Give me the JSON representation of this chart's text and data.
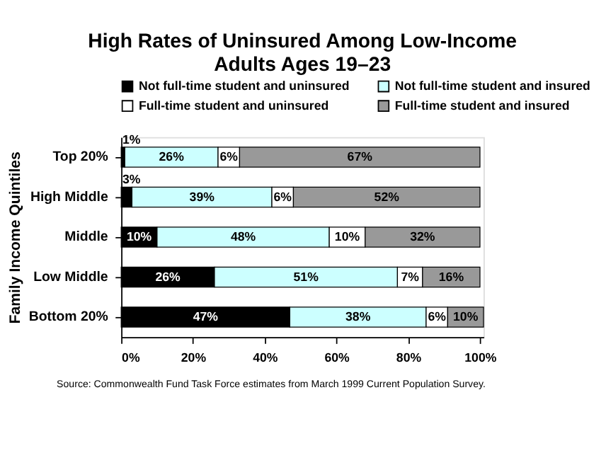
{
  "chart_data": {
    "type": "bar",
    "orientation": "horizontal",
    "stacked": true,
    "title": "High Rates of Uninsured Among Low-Income Adults Ages 19–23",
    "ylabel": "Family Income Quintiles",
    "categories": [
      "Top 20%",
      "High Middle",
      "Middle",
      "Low Middle",
      "Bottom 20%"
    ],
    "series": [
      {
        "name": "Not full-time student and uninsured",
        "color": "#000000",
        "values": [
          1,
          3,
          10,
          26,
          47
        ],
        "value_labels": [
          "1%",
          "3%",
          "10%",
          "26%",
          "47%"
        ]
      },
      {
        "name": "Not full-time student and insured",
        "color": "#ccffff",
        "values": [
          26,
          39,
          48,
          51,
          38
        ],
        "value_labels": [
          "26%",
          "39%",
          "48%",
          "51%",
          "38%"
        ]
      },
      {
        "name": "Full-time student and uninsured",
        "color": "#ffffff",
        "values": [
          6,
          6,
          10,
          7,
          6
        ],
        "value_labels": [
          "6%",
          "6%",
          "10%",
          "7%",
          "6%"
        ]
      },
      {
        "name": "Full-time student and insured",
        "color": "#999999",
        "values": [
          67,
          52,
          32,
          16,
          10
        ],
        "value_labels": [
          "67%",
          "52%",
          "32%",
          "16%",
          "10%"
        ]
      }
    ],
    "xlim": [
      0,
      101
    ],
    "xticks": [
      {
        "value": 0,
        "label": "0%"
      },
      {
        "value": 20,
        "label": "20%"
      },
      {
        "value": 40,
        "label": "40%"
      },
      {
        "value": 60,
        "label": "60%"
      },
      {
        "value": 80,
        "label": "80%"
      },
      {
        "value": 100,
        "label": "100%"
      }
    ],
    "grid": false,
    "legend": "top",
    "annotations": [
      "Source: Commonwealth Fund Task Force estimates from March 1999 Current Population Survey."
    ]
  }
}
